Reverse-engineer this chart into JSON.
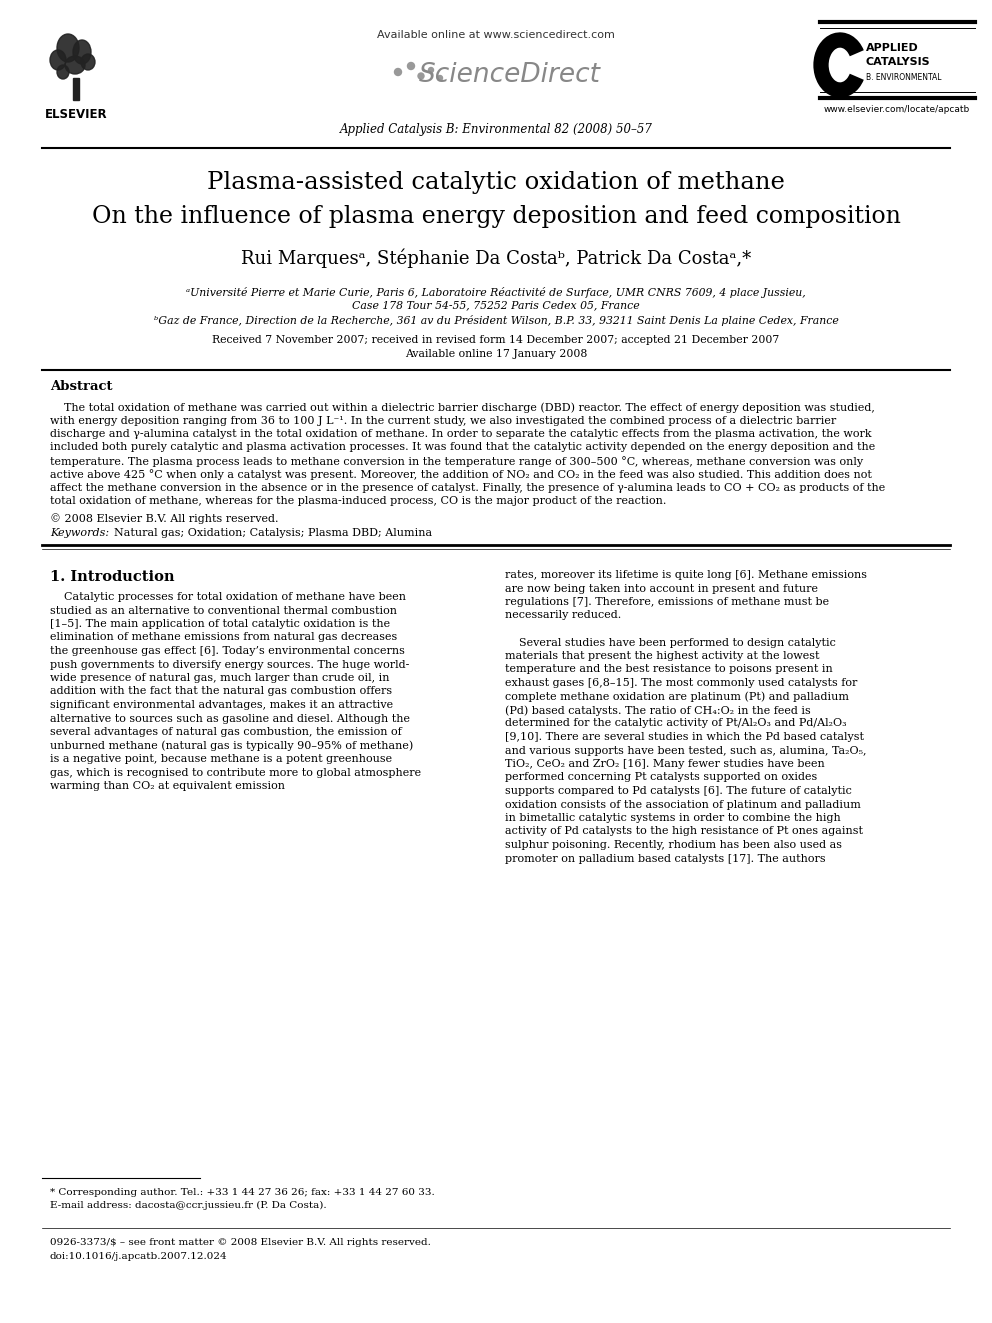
{
  "bg_color": "#ffffff",
  "title_line1": "Plasma-assisted catalytic oxidation of methane",
  "title_line2": "On the influence of plasma energy deposition and feed composition",
  "authors": "Rui Marquesᵃ, Stéphanie Da Costaᵇ, Patrick Da Costaᵃ,*",
  "affil_a": "ᵃUniversité Pierre et Marie Curie, Paris 6, Laboratoire Réactivité de Surface, UMR CNRS 7609, 4 place Jussieu,",
  "affil_a2": "Case 178 Tour 54-55, 75252 Paris Cedex 05, France",
  "affil_b": "ᵇGaz de France, Direction de la Recherche, 361 av du Président Wilson, B.P. 33, 93211 Saint Denis La plaine Cedex, France",
  "received": "Received 7 November 2007; received in revised form 14 December 2007; accepted 21 December 2007",
  "available": "Available online 17 January 2008",
  "journal_info": "Applied Catalysis B: Environmental 82 (2008) 50–57",
  "url_top": "Available online at www.sciencedirect.com",
  "url_bottom": "www.elsevier.com/locate/apcatb",
  "abstract_title": "Abstract",
  "copyright": "© 2008 Elsevier B.V. All rights reserved.",
  "keywords_label": "Keywords:",
  "keywords": "Natural gas; Oxidation; Catalysis; Plasma DBD; Alumina",
  "section1_title": "1. Introduction",
  "footer_note": "* Corresponding author. Tel.: +33 1 44 27 36 26; fax: +33 1 44 27 60 33.",
  "footer_email": "E-mail address: dacosta@ccr.jussieu.fr (P. Da Costa).",
  "footer_issn": "0926-3373/$ – see front matter © 2008 Elsevier B.V. All rights reserved.",
  "footer_doi": "doi:10.1016/j.apcatb.2007.12.024",
  "abstract_lines": [
    "    The total oxidation of methane was carried out within a dielectric barrier discharge (DBD) reactor. The effect of energy deposition was studied,",
    "with energy deposition ranging from 36 to 100 J L⁻¹. In the current study, we also investigated the combined process of a dielectric barrier",
    "discharge and γ-alumina catalyst in the total oxidation of methane. In order to separate the catalytic effects from the plasma activation, the work",
    "included both purely catalytic and plasma activation processes. It was found that the catalytic activity depended on the energy deposition and the",
    "temperature. The plasma process leads to methane conversion in the temperature range of 300–500 °C, whereas, methane conversion was only",
    "active above 425 °C when only a catalyst was present. Moreover, the addition of NO₂ and CO₂ in the feed was also studied. This addition does not",
    "affect the methane conversion in the absence or in the presence of catalyst. Finally, the presence of γ-alumina leads to CO + CO₂ as products of the",
    "total oxidation of methane, whereas for the plasma-induced process, CO is the major product of the reaction."
  ],
  "col1_lines": [
    "    Catalytic processes for total oxidation of methane have been",
    "studied as an alternative to conventional thermal combustion",
    "[1–5]. The main application of total catalytic oxidation is the",
    "elimination of methane emissions from natural gas decreases",
    "the greenhouse gas effect [6]. Today’s environmental concerns",
    "push governments to diversify energy sources. The huge world-",
    "wide presence of natural gas, much larger than crude oil, in",
    "addition with the fact that the natural gas combustion offers",
    "significant environmental advantages, makes it an attractive",
    "alternative to sources such as gasoline and diesel. Although the",
    "several advantages of natural gas combustion, the emission of",
    "unburned methane (natural gas is typically 90–95% of methane)",
    "is a negative point, because methane is a potent greenhouse",
    "gas, which is recognised to contribute more to global atmosphere",
    "warming than CO₂ at equivalent emission"
  ],
  "col2_lines": [
    "rates, moreover its lifetime is quite long [6]. Methane emissions",
    "are now being taken into account in present and future",
    "regulations [7]. Therefore, emissions of methane must be",
    "necessarily reduced.",
    "",
    "    Several studies have been performed to design catalytic",
    "materials that present the highest activity at the lowest",
    "temperature and the best resistance to poisons present in",
    "exhaust gases [6,8–15]. The most commonly used catalysts for",
    "complete methane oxidation are platinum (Pt) and palladium",
    "(Pd) based catalysts. The ratio of CH₄:O₂ in the feed is",
    "determined for the catalytic activity of Pt/Al₂O₃ and Pd/Al₂O₃",
    "[9,10]. There are several studies in which the Pd based catalyst",
    "and various supports have been tested, such as, alumina, Ta₂O₅,",
    "TiO₂, CeO₂ and ZrO₂ [16]. Many fewer studies have been",
    "performed concerning Pt catalysts supported on oxides",
    "supports compared to Pd catalysts [6]. The future of catalytic",
    "oxidation consists of the association of platinum and palladium",
    "in bimetallic catalytic systems in order to combine the high",
    "activity of Pd catalysts to the high resistance of Pt ones against",
    "sulphur poisoning. Recently, rhodium has been also used as",
    "promoter on palladium based catalysts [17]. The authors"
  ]
}
